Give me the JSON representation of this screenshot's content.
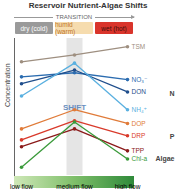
{
  "chart_data": {
    "type": "line",
    "title": "Reservoir Nutrient-Algae Shifts",
    "y_label": "Concentration",
    "annotations": {
      "transition": "TRANSITION",
      "shift": "SHIFT",
      "seasons": [
        "dry (cold)",
        "humid (warm)",
        "wet (hot)"
      ]
    },
    "categories": [
      "low flow",
      "medium flow",
      "high flow"
    ],
    "ylim": [
      0,
      100
    ],
    "tick_labels": "x",
    "marker": "circle",
    "series": [
      {
        "name": "TSM",
        "color": "#9e8f80",
        "values": [
          83,
          88,
          94
        ]
      },
      {
        "name": "NO₃⁻",
        "color": "#2b6cb0",
        "values": [
          72,
          75,
          70
        ]
      },
      {
        "name": "DON",
        "color": "#1f4e8c",
        "values": [
          67,
          77,
          61
        ]
      },
      {
        "name": "NH₄⁺",
        "color": "#5ab0e0",
        "values": [
          58,
          82,
          48
        ]
      },
      {
        "name": "DOP",
        "color": "#e07b39",
        "values": [
          34,
          48,
          38
        ]
      },
      {
        "name": "DRP",
        "color": "#d93a2b",
        "values": [
          26,
          40,
          29
        ]
      },
      {
        "name": "TPP",
        "color": "#8b1a1a",
        "values": [
          21,
          34,
          18
        ]
      },
      {
        "name": "Chl-a",
        "color": "#3a9a3a",
        "values": [
          6,
          39,
          12
        ]
      }
    ],
    "groups": [
      {
        "label": "N",
        "series": [
          "NO₃⁻",
          "DON",
          "NH₄⁺"
        ]
      },
      {
        "label": "P",
        "series": [
          "DOP",
          "DRP",
          "TPP"
        ]
      },
      {
        "label": "Algae",
        "series": [
          "Chl-a"
        ]
      }
    ]
  }
}
